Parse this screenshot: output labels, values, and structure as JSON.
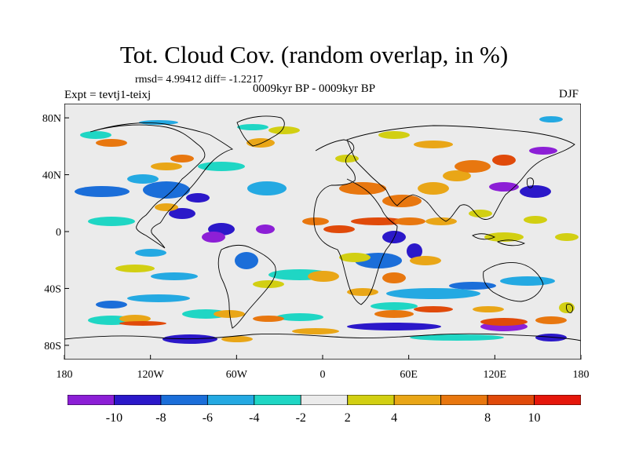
{
  "header": {
    "title": "Tot. Cloud Cov. (random overlap, in %)",
    "stats": "rmsd= 4.99412 diff= -1.2217",
    "experiment": "Expt = tevtj1-teixj",
    "period": "0009kyr BP - 0009kyr BP",
    "season": "DJF"
  },
  "map": {
    "lon_ticks": [
      "180",
      "120W",
      "60W",
      "0",
      "60E",
      "120E",
      "180"
    ],
    "lat_ticks": [
      "80N",
      "40N",
      "0",
      "40S",
      "80S"
    ],
    "lon_values": [
      -180,
      -120,
      -60,
      0,
      60,
      120,
      180
    ],
    "lat_values": [
      80,
      40,
      0,
      -40,
      -80
    ],
    "projection": "cylindrical equidistant",
    "lon_range": [
      -180,
      180
    ],
    "lat_range": [
      -90,
      90
    ],
    "coastlines": true
  },
  "colorbar": {
    "bins": [
      "#8c1fd6",
      "#2b18c9",
      "#1b6ed9",
      "#24a9e2",
      "#1fd6c4",
      "#ebebeb",
      "#d2cf12",
      "#e9a617",
      "#e8770f",
      "#e04a0a",
      "#e5170b"
    ],
    "tick_labels": [
      "-10",
      "-8",
      "-6",
      "-4",
      "-2",
      "2",
      "4",
      "8",
      "10"
    ],
    "levels": [
      -10,
      -8,
      -6,
      -4,
      -2,
      2,
      4,
      8,
      10
    ]
  }
}
